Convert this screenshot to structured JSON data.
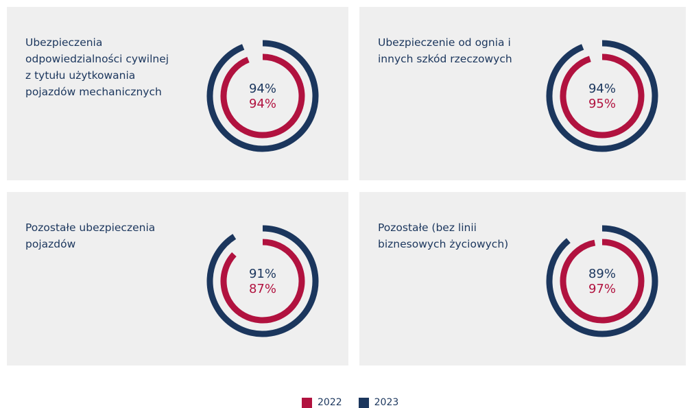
{
  "chart_data": [
    {
      "type": "radial",
      "title": "Ubezpieczenia odpowiedzialności cywilnej z tytułu użytkowania pojazdów mechanicznych",
      "ylim": [
        0,
        100
      ],
      "series": [
        {
          "name": "2023",
          "color": "#1b365d",
          "values": [
            94
          ],
          "value_labels": [
            "94%"
          ]
        },
        {
          "name": "2022",
          "color": "#b1123f",
          "values": [
            94
          ],
          "value_labels": [
            "94%"
          ]
        }
      ]
    },
    {
      "type": "radial",
      "title": "Ubezpieczenie od ognia i innych szkód rzeczowych",
      "ylim": [
        0,
        100
      ],
      "series": [
        {
          "name": "2023",
          "color": "#1b365d",
          "values": [
            94
          ],
          "value_labels": [
            "94%"
          ]
        },
        {
          "name": "2022",
          "color": "#b1123f",
          "values": [
            95
          ],
          "value_labels": [
            "95%"
          ]
        }
      ]
    },
    {
      "type": "radial",
      "title": "Pozostałe ubezpieczenia pojazdów",
      "ylim": [
        0,
        100
      ],
      "series": [
        {
          "name": "2023",
          "color": "#1b365d",
          "values": [
            91
          ],
          "value_labels": [
            "91%"
          ]
        },
        {
          "name": "2022",
          "color": "#b1123f",
          "values": [
            87
          ],
          "value_labels": [
            "87%"
          ]
        }
      ]
    },
    {
      "type": "radial",
      "title": "Pozostałe (bez linii biznesowych życiowych)",
      "ylim": [
        0,
        100
      ],
      "series": [
        {
          "name": "2023",
          "color": "#1b365d",
          "values": [
            89
          ],
          "value_labels": [
            "89%"
          ]
        },
        {
          "name": "2022",
          "color": "#b1123f",
          "values": [
            97
          ],
          "value_labels": [
            "97%"
          ]
        }
      ]
    }
  ]
}
